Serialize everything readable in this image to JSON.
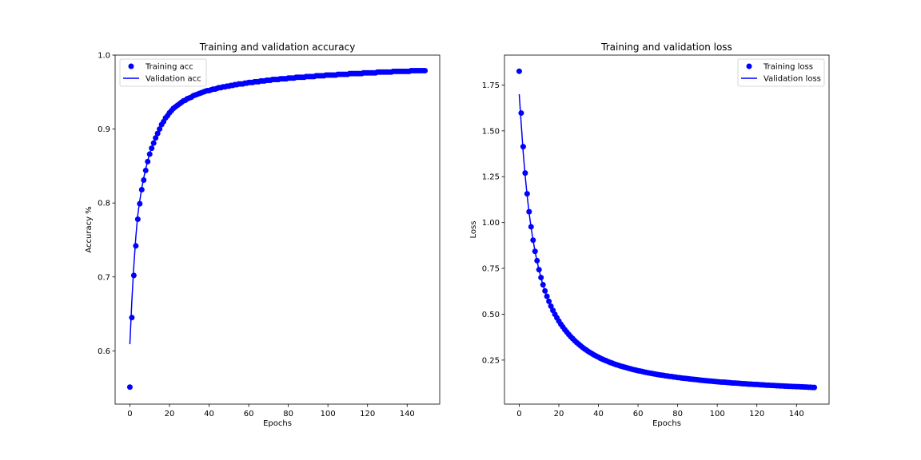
{
  "chart_data": [
    {
      "type": "line",
      "title": "Training and validation accuracy",
      "xlabel": "Epochs",
      "ylabel": "Accuracy %",
      "xlim": [
        -7.45,
        156.45
      ],
      "ylim": [
        0.528,
        1.0
      ],
      "xticks": [
        0,
        20,
        40,
        60,
        80,
        100,
        120,
        140
      ],
      "xtick_labels": [
        "0",
        "20",
        "40",
        "60",
        "80",
        "100",
        "120",
        "140"
      ],
      "yticks": [
        0.6,
        0.7,
        0.8,
        0.9,
        1.0
      ],
      "ytick_labels": [
        "0.6",
        "0.7",
        "0.8",
        "0.9",
        "1.0"
      ],
      "legend_position": "top-left",
      "series": [
        {
          "name": "Training acc",
          "style": "points",
          "color": "#0000ff",
          "x_start": 0,
          "x_step": 1,
          "values": [
            0.551,
            0.645,
            0.702,
            0.742,
            0.778,
            0.799,
            0.818,
            0.831,
            0.844,
            0.856,
            0.866,
            0.874,
            0.881,
            0.888,
            0.894,
            0.9,
            0.906,
            0.91,
            0.915,
            0.918,
            0.922,
            0.925,
            0.928,
            0.93,
            0.932,
            0.934,
            0.936,
            0.938,
            0.939,
            0.941,
            0.942,
            0.943,
            0.945,
            0.946,
            0.947,
            0.948,
            0.949,
            0.95,
            0.951,
            0.952,
            0.952,
            0.953,
            0.954,
            0.954,
            0.955,
            0.956,
            0.956,
            0.957,
            0.957,
            0.958,
            0.958,
            0.959,
            0.959,
            0.96,
            0.96,
            0.961,
            0.961,
            0.961,
            0.962,
            0.962,
            0.963,
            0.963,
            0.963,
            0.964,
            0.964,
            0.964,
            0.965,
            0.965,
            0.965,
            0.966,
            0.966,
            0.966,
            0.967,
            0.967,
            0.967,
            0.967,
            0.968,
            0.968,
            0.968,
            0.968,
            0.969,
            0.969,
            0.969,
            0.969,
            0.97,
            0.97,
            0.97,
            0.97,
            0.97,
            0.971,
            0.971,
            0.971,
            0.971,
            0.971,
            0.972,
            0.972,
            0.972,
            0.972,
            0.972,
            0.973,
            0.973,
            0.973,
            0.973,
            0.973,
            0.973,
            0.974,
            0.974,
            0.974,
            0.974,
            0.974,
            0.974,
            0.975,
            0.975,
            0.975,
            0.975,
            0.975,
            0.975,
            0.975,
            0.976,
            0.976,
            0.976,
            0.976,
            0.976,
            0.976,
            0.976,
            0.977,
            0.977,
            0.977,
            0.977,
            0.977,
            0.977,
            0.977,
            0.977,
            0.978,
            0.978,
            0.978,
            0.978,
            0.978,
            0.978,
            0.978,
            0.978,
            0.978,
            0.979,
            0.979,
            0.979,
            0.979,
            0.979,
            0.979,
            0.979,
            0.979
          ]
        },
        {
          "name": "Validation acc",
          "style": "line",
          "color": "#0000ff",
          "x_start": 0,
          "x_step": 1,
          "values": [
            0.609,
            0.668,
            0.715,
            0.754,
            0.784,
            0.803,
            0.82,
            0.834,
            0.846,
            0.857,
            0.867,
            0.875,
            0.882,
            0.888,
            0.895,
            0.9,
            0.905,
            0.91,
            0.914,
            0.918,
            0.921,
            0.924,
            0.927,
            0.929,
            0.932,
            0.934,
            0.935,
            0.937,
            0.939,
            0.94,
            0.942,
            0.943,
            0.944,
            0.946,
            0.947,
            0.948,
            0.949,
            0.95,
            0.95,
            0.951,
            0.952,
            0.953,
            0.953,
            0.954,
            0.955,
            0.955,
            0.956,
            0.956,
            0.957,
            0.957,
            0.958,
            0.958,
            0.959,
            0.959,
            0.96,
            0.96,
            0.96,
            0.961,
            0.961,
            0.962,
            0.962,
            0.962,
            0.963,
            0.963,
            0.963,
            0.964,
            0.964,
            0.964,
            0.965,
            0.965,
            0.965,
            0.966,
            0.966,
            0.966,
            0.966,
            0.967,
            0.967,
            0.967,
            0.967,
            0.968,
            0.968,
            0.968,
            0.968,
            0.969,
            0.969,
            0.969,
            0.969,
            0.969,
            0.97,
            0.97,
            0.97,
            0.97,
            0.97,
            0.971,
            0.971,
            0.971,
            0.971,
            0.971,
            0.972,
            0.972,
            0.972,
            0.972,
            0.972,
            0.972,
            0.973,
            0.973,
            0.973,
            0.973,
            0.973,
            0.973,
            0.974,
            0.974,
            0.974,
            0.974,
            0.974,
            0.974,
            0.974,
            0.974,
            0.975,
            0.975,
            0.975,
            0.975,
            0.975,
            0.975,
            0.975,
            0.976,
            0.976,
            0.976,
            0.976,
            0.976,
            0.976,
            0.976,
            0.976,
            0.977,
            0.977,
            0.977,
            0.977,
            0.977,
            0.977,
            0.977,
            0.977,
            0.977,
            0.978,
            0.978,
            0.978,
            0.978,
            0.978,
            0.978,
            0.978,
            0.978
          ]
        }
      ]
    },
    {
      "type": "line",
      "title": "Training and validation loss",
      "xlabel": "Epochs",
      "ylabel": "Loss",
      "xlim": [
        -7.45,
        156.45
      ],
      "ylim": [
        0.01,
        1.913
      ],
      "xticks": [
        0,
        20,
        40,
        60,
        80,
        100,
        120,
        140
      ],
      "xtick_labels": [
        "0",
        "20",
        "40",
        "60",
        "80",
        "100",
        "120",
        "140"
      ],
      "yticks": [
        0.25,
        0.5,
        0.75,
        1.0,
        1.25,
        1.5,
        1.75
      ],
      "ytick_labels": [
        "0.25",
        "0.50",
        "0.75",
        "1.00",
        "1.25",
        "1.50",
        "1.75"
      ],
      "legend_position": "top-right",
      "series": [
        {
          "name": "Training loss",
          "style": "points",
          "color": "#0000ff",
          "x_start": 0,
          "x_step": 1,
          "values": [
            1.825,
            1.597,
            1.414,
            1.27,
            1.157,
            1.059,
            0.977,
            0.904,
            0.843,
            0.792,
            0.743,
            0.7,
            0.661,
            0.627,
            0.598,
            0.57,
            0.544,
            0.521,
            0.5,
            0.481,
            0.463,
            0.446,
            0.431,
            0.416,
            0.403,
            0.39,
            0.378,
            0.367,
            0.356,
            0.346,
            0.337,
            0.328,
            0.319,
            0.311,
            0.304,
            0.296,
            0.29,
            0.283,
            0.277,
            0.271,
            0.266,
            0.26,
            0.255,
            0.25,
            0.246,
            0.241,
            0.237,
            0.233,
            0.229,
            0.225,
            0.222,
            0.218,
            0.215,
            0.212,
            0.209,
            0.206,
            0.203,
            0.2,
            0.197,
            0.195,
            0.192,
            0.19,
            0.188,
            0.185,
            0.183,
            0.181,
            0.179,
            0.177,
            0.175,
            0.173,
            0.171,
            0.169,
            0.168,
            0.166,
            0.164,
            0.163,
            0.161,
            0.16,
            0.158,
            0.157,
            0.155,
            0.154,
            0.152,
            0.151,
            0.15,
            0.149,
            0.147,
            0.146,
            0.145,
            0.144,
            0.143,
            0.141,
            0.14,
            0.139,
            0.138,
            0.137,
            0.136,
            0.135,
            0.134,
            0.133,
            0.132,
            0.131,
            0.13,
            0.13,
            0.129,
            0.128,
            0.127,
            0.126,
            0.125,
            0.125,
            0.124,
            0.123,
            0.122,
            0.121,
            0.121,
            0.12,
            0.119,
            0.119,
            0.118,
            0.117,
            0.117,
            0.116,
            0.115,
            0.115,
            0.114,
            0.113,
            0.113,
            0.112,
            0.112,
            0.111,
            0.11,
            0.11,
            0.109,
            0.109,
            0.108,
            0.108,
            0.107,
            0.107,
            0.106,
            0.106,
            0.105,
            0.105,
            0.104,
            0.104,
            0.103,
            0.103,
            0.102,
            0.102,
            0.101,
            0.101
          ]
        },
        {
          "name": "Validation loss",
          "style": "line",
          "color": "#0000ff",
          "x_start": 0,
          "x_step": 1,
          "values": [
            1.7,
            1.538,
            1.383,
            1.255,
            1.147,
            1.052,
            0.972,
            0.903,
            0.842,
            0.789,
            0.741,
            0.698,
            0.66,
            0.626,
            0.596,
            0.568,
            0.543,
            0.52,
            0.499,
            0.48,
            0.462,
            0.445,
            0.43,
            0.415,
            0.402,
            0.389,
            0.377,
            0.366,
            0.355,
            0.345,
            0.336,
            0.327,
            0.319,
            0.311,
            0.303,
            0.296,
            0.289,
            0.283,
            0.277,
            0.271,
            0.265,
            0.26,
            0.255,
            0.25,
            0.245,
            0.241,
            0.237,
            0.232,
            0.229,
            0.225,
            0.221,
            0.218,
            0.215,
            0.211,
            0.208,
            0.205,
            0.203,
            0.2,
            0.197,
            0.195,
            0.192,
            0.19,
            0.187,
            0.185,
            0.183,
            0.181,
            0.179,
            0.177,
            0.175,
            0.173,
            0.171,
            0.169,
            0.167,
            0.166,
            0.164,
            0.162,
            0.161,
            0.159,
            0.158,
            0.156,
            0.155,
            0.153,
            0.152,
            0.151,
            0.149,
            0.148,
            0.147,
            0.146,
            0.144,
            0.143,
            0.142,
            0.141,
            0.14,
            0.139,
            0.138,
            0.137,
            0.136,
            0.135,
            0.134,
            0.133,
            0.132,
            0.131,
            0.13,
            0.129,
            0.128,
            0.127,
            0.127,
            0.126,
            0.125,
            0.124,
            0.123,
            0.123,
            0.122,
            0.121,
            0.12,
            0.12,
            0.119,
            0.118,
            0.118,
            0.117,
            0.116,
            0.116,
            0.115,
            0.114,
            0.114,
            0.113,
            0.113,
            0.112,
            0.111,
            0.111,
            0.11,
            0.11,
            0.109,
            0.109,
            0.108,
            0.108,
            0.107,
            0.107,
            0.106,
            0.106,
            0.105,
            0.105,
            0.104,
            0.104,
            0.103,
            0.103,
            0.102,
            0.102,
            0.101,
            0.101
          ]
        }
      ]
    }
  ]
}
